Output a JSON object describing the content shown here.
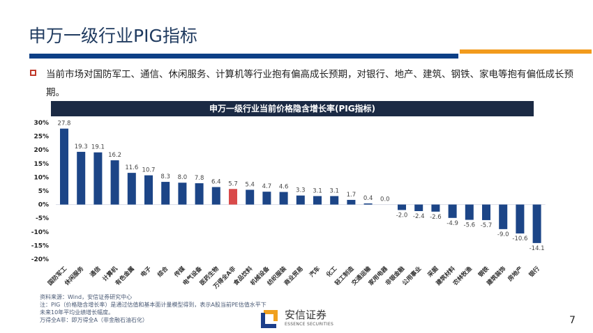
{
  "page": {
    "title": "申万一级行业PIG指标",
    "bullet_text": "当前市场对国防军工、通信、休闲服务、计算机等行业抱有偏高成长预期，对银行、地产、建筑、钢铁、家电等抱有偏低成长预期。",
    "page_number": "7",
    "colors": {
      "accent_blue": "#0d3f86",
      "accent_orange": "#f29b1d",
      "bullet_red": "#c0392b",
      "header_bg": "#1b2a44"
    }
  },
  "notes": {
    "source": "资料来源：Wind，安信证券研究中心",
    "note1": "注：PIG（价格隐含增长率）是通过估值和基本面计量模型得到，表示A股当前PE估值水平下未来10年平均业绩增长幅度。",
    "note2": "万得全A非：即万得全A（非金融石油石化）"
  },
  "logo": {
    "name": "安信证券",
    "english": "ESSENCE SECURITIES"
  },
  "chart_data": {
    "type": "bar",
    "title": "申万一级行业当前价格隐含增长率(PIG指标)",
    "xlabel": "",
    "ylabel": "",
    "ylim": [
      -20,
      30
    ],
    "yticks": [
      "30%",
      "25%",
      "20%",
      "15%",
      "10%",
      "5%",
      "0%",
      "-5%",
      "-10%",
      "-15%",
      "-20%"
    ],
    "ytick_values": [
      30,
      25,
      20,
      15,
      10,
      5,
      0,
      -5,
      -10,
      -15,
      -20
    ],
    "grid": false,
    "categories": [
      "国防军工",
      "休闲服务",
      "通信",
      "计算机",
      "有色金属",
      "电子",
      "综合",
      "传媒",
      "电气设备",
      "医药生物",
      "万得全A非",
      "食品饮料",
      "机械设备",
      "纺织服装",
      "商业贸易",
      "汽车",
      "化工",
      "轻工制造",
      "交通运输",
      "家用电器",
      "非银金融",
      "公用事业",
      "采掘",
      "建筑材料",
      "农林牧渔",
      "钢铁",
      "建筑装饰",
      "房地产",
      "银行"
    ],
    "values": [
      27.8,
      19.3,
      19.1,
      16.2,
      11.6,
      10.7,
      8.3,
      8.0,
      7.8,
      6.4,
      5.7,
      5.4,
      4.7,
      4.6,
      3.3,
      3.1,
      3.1,
      1.7,
      0.4,
      0.0,
      -2.0,
      -2.4,
      -2.6,
      -4.9,
      -5.6,
      -5.7,
      -9.0,
      -10.6,
      -14.1
    ],
    "value_labels": [
      "27.8",
      "19.3",
      "19.1",
      "16.2",
      "11.6",
      "10.7",
      "8.3",
      "8.0",
      "7.8",
      "6.4",
      "5.7",
      "5.4",
      "4.7",
      "4.6",
      "3.3",
      "3.1",
      "3.1",
      "1.7",
      "0.4",
      "0.0",
      "-2.0",
      "-2.4",
      "-2.6",
      "-4.9",
      "-5.6",
      "-5.7",
      "-9.0",
      "-10.6",
      "-14.1"
    ],
    "highlight_index": 10,
    "bar_color": "#1c4587",
    "highlight_color": "#d94a4a"
  }
}
